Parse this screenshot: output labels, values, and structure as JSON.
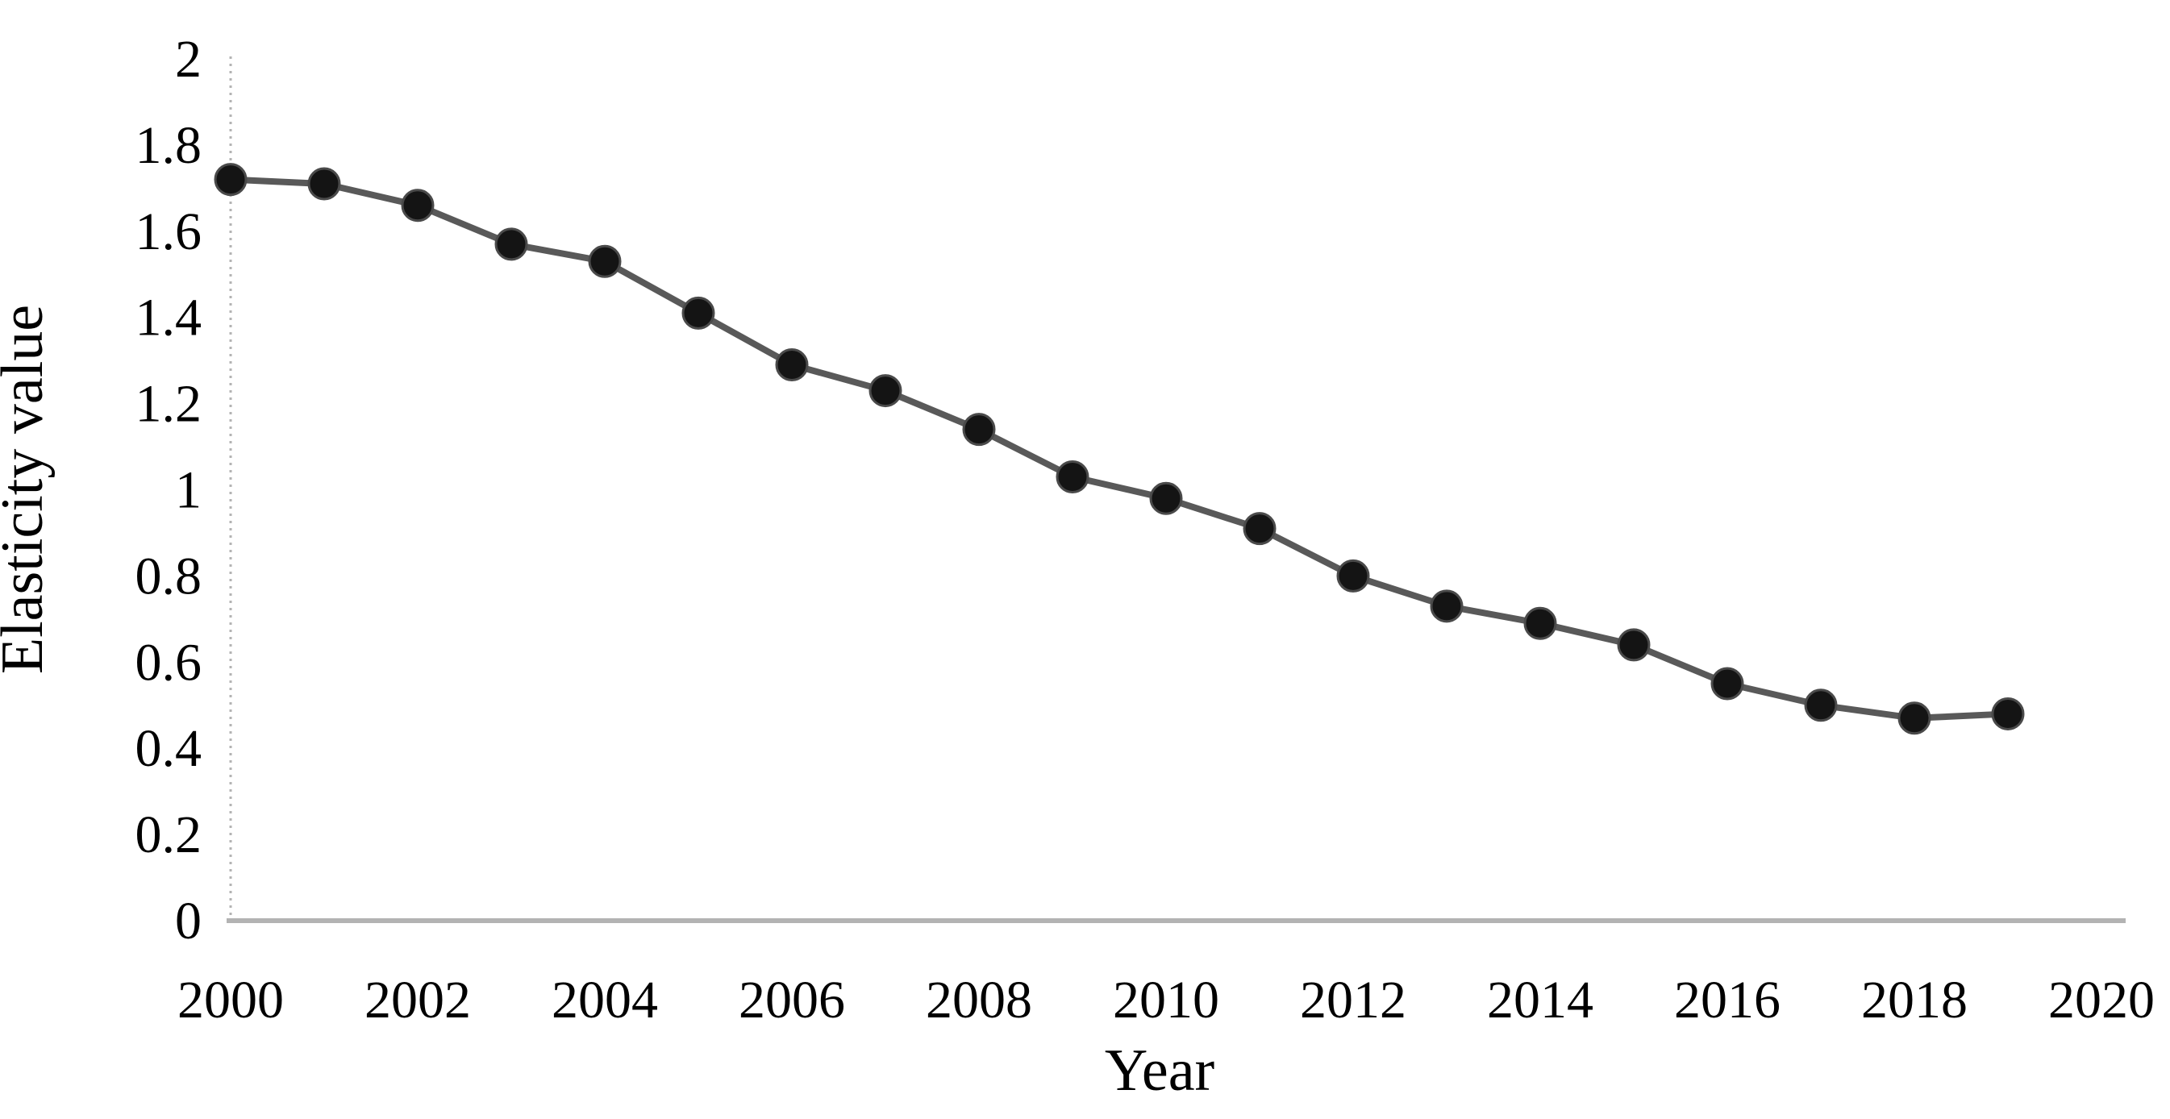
{
  "figure": {
    "background": "#ffffff"
  },
  "chart_data": {
    "type": "line",
    "title": "",
    "xlabel": "Year",
    "ylabel": "Elasticity value",
    "x": [
      2000,
      2001,
      2002,
      2003,
      2004,
      2005,
      2006,
      2007,
      2008,
      2009,
      2010,
      2011,
      2012,
      2013,
      2014,
      2015,
      2016,
      2017,
      2018,
      2019
    ],
    "series": [
      {
        "name": "Elasticity value",
        "values": [
          1.72,
          1.71,
          1.66,
          1.57,
          1.53,
          1.41,
          1.29,
          1.23,
          1.14,
          1.03,
          0.98,
          0.91,
          0.8,
          0.73,
          0.69,
          0.64,
          0.55,
          0.5,
          0.47,
          0.48
        ]
      }
    ],
    "xlim": [
      2000,
      2020
    ],
    "ylim": [
      0,
      2
    ],
    "yticks": {
      "values": [
        0,
        0.2,
        0.4,
        0.6,
        0.8,
        1,
        1.2,
        1.4,
        1.6,
        1.8,
        2
      ],
      "labels": [
        "0",
        "0.2",
        "0.4",
        "0.6",
        "0.8",
        "1",
        "1.2",
        "1.4",
        "1.6",
        "1.8",
        "2"
      ]
    },
    "xticks": {
      "values": [
        2000,
        2002,
        2004,
        2006,
        2008,
        2010,
        2012,
        2014,
        2016,
        2018,
        2020
      ],
      "labels": [
        "2000",
        "2002",
        "2004",
        "2006",
        "2008",
        "2010",
        "2012",
        "2014",
        "2016",
        "2018",
        "2020"
      ]
    },
    "grid": false,
    "legend": "none",
    "marker": "circle",
    "colors": {
      "line": "#595959",
      "marker": "#141414",
      "marker_ring": "#4a4a4a",
      "axis": "#b3b3b3",
      "text": "#000000"
    }
  }
}
